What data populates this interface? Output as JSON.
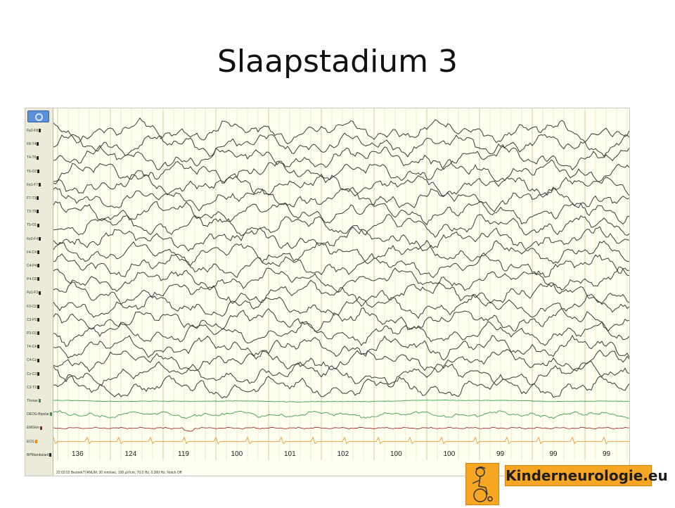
{
  "slide": {
    "title": "Slaapstadium 3"
  },
  "eeg_viewer": {
    "channels": [
      {
        "label": "Fp2-F8",
        "type": "eeg",
        "marker_color": "#222222"
      },
      {
        "label": "F8-T4",
        "type": "eeg",
        "marker_color": "#222222"
      },
      {
        "label": "T4-T6",
        "type": "eeg",
        "marker_color": "#222222"
      },
      {
        "label": "T6-O2",
        "type": "eeg",
        "marker_color": "#222222"
      },
      {
        "label": "Fp1-F7",
        "type": "eeg",
        "marker_color": "#222222"
      },
      {
        "label": "F7-T3",
        "type": "eeg",
        "marker_color": "#222222"
      },
      {
        "label": "T3-T5",
        "type": "eeg",
        "marker_color": "#222222"
      },
      {
        "label": "T5-O1",
        "type": "eeg",
        "marker_color": "#222222"
      },
      {
        "label": "Fp2-F4",
        "type": "eeg",
        "marker_color": "#222222"
      },
      {
        "label": "F4-C4",
        "type": "eeg",
        "marker_color": "#222222"
      },
      {
        "label": "C4-P4",
        "type": "eeg",
        "marker_color": "#222222"
      },
      {
        "label": "P4-O2",
        "type": "eeg",
        "marker_color": "#222222"
      },
      {
        "label": "Fp1-F3",
        "type": "eeg",
        "marker_color": "#222222"
      },
      {
        "label": "F3-C3",
        "type": "eeg",
        "marker_color": "#222222"
      },
      {
        "label": "C3-P3",
        "type": "eeg",
        "marker_color": "#222222"
      },
      {
        "label": "P3-O1",
        "type": "eeg",
        "marker_color": "#222222"
      },
      {
        "label": "T4-C4",
        "type": "eeg",
        "marker_color": "#222222"
      },
      {
        "label": "C4-Cz",
        "type": "eeg",
        "marker_color": "#222222"
      },
      {
        "label": "Cz-C3",
        "type": "eeg",
        "marker_color": "#222222"
      },
      {
        "label": "C3-T3",
        "type": "eeg",
        "marker_color": "#222222"
      },
      {
        "label": "Thorax",
        "type": "resp",
        "marker_color": "#2e9b3a"
      },
      {
        "label": "DEOG-Bipolar",
        "type": "eog",
        "marker_color": "#2e9b3a"
      },
      {
        "label": "EMGkin",
        "type": "emg",
        "marker_color": "#a02020"
      },
      {
        "label": "ECG",
        "type": "ecg",
        "marker_color": "#f08c1e"
      },
      {
        "label": "BPMambulant",
        "type": "bpm",
        "marker_color": "#222222"
      }
    ],
    "trace_colors": {
      "eeg": "#3a3a3a",
      "resp": "#3aa04a",
      "eog": "#3aa04a",
      "emg": "#a23030",
      "ecg": "#f29a34",
      "grid": "#e3e0b8",
      "grid_major": "#cfcc9a"
    },
    "bpm_values": [
      "136",
      "124",
      "119",
      "100",
      "101",
      "102",
      "100",
      "100",
      "99",
      "99",
      "99"
    ],
    "status_text": "22:02:02 Bezoek77ANUM, 30 mm/sec, 100 µV/cm, 70,0 Hz, 0,300 Hz, Notch Off"
  },
  "logo": {
    "text": "Kinderneurologie.eu",
    "icon": "child-wheelchair-logo-icon"
  }
}
